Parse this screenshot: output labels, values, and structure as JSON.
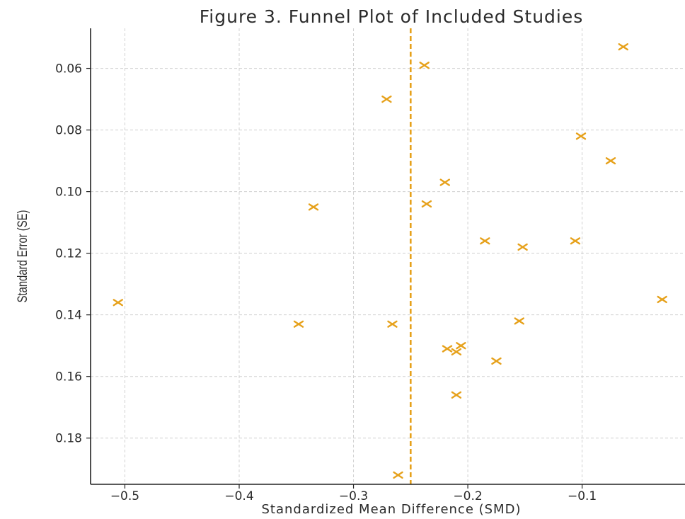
{
  "chart_data": {
    "type": "scatter",
    "title": "Figure 3. Funnel Plot of Included Studies",
    "xlabel": "Standardized Mean Difference (SMD)",
    "ylabel": "Standard Error (SE)",
    "xlim": [
      -0.53,
      -0.01
    ],
    "ylim": [
      0.195,
      0.047
    ],
    "y_inverted": true,
    "xticks": [
      -0.5,
      -0.4,
      -0.3,
      -0.2,
      -0.1
    ],
    "xtick_labels": [
      "−0.5",
      "−0.4",
      "−0.3",
      "−0.2",
      "−0.1"
    ],
    "yticks": [
      0.06,
      0.08,
      0.1,
      0.12,
      0.14,
      0.16,
      0.18
    ],
    "ytick_labels": [
      "0.06",
      "0.08",
      "0.10",
      "0.12",
      "0.14",
      "0.16",
      "0.18"
    ],
    "grid": true,
    "marker": "x",
    "color": "#e6a11b",
    "reference_line": {
      "x": -0.25,
      "style": "dashed",
      "color": "#e6a11b"
    },
    "points": [
      {
        "x": -0.064,
        "y": 0.053
      },
      {
        "x": -0.238,
        "y": 0.059
      },
      {
        "x": -0.271,
        "y": 0.07
      },
      {
        "x": -0.101,
        "y": 0.082
      },
      {
        "x": -0.075,
        "y": 0.09
      },
      {
        "x": -0.22,
        "y": 0.097
      },
      {
        "x": -0.335,
        "y": 0.105
      },
      {
        "x": -0.236,
        "y": 0.104
      },
      {
        "x": -0.185,
        "y": 0.116
      },
      {
        "x": -0.106,
        "y": 0.116
      },
      {
        "x": -0.152,
        "y": 0.118
      },
      {
        "x": -0.506,
        "y": 0.136
      },
      {
        "x": -0.03,
        "y": 0.135
      },
      {
        "x": -0.348,
        "y": 0.143
      },
      {
        "x": -0.266,
        "y": 0.143
      },
      {
        "x": -0.155,
        "y": 0.142
      },
      {
        "x": -0.218,
        "y": 0.151
      },
      {
        "x": -0.206,
        "y": 0.15
      },
      {
        "x": -0.21,
        "y": 0.152
      },
      {
        "x": -0.175,
        "y": 0.155
      },
      {
        "x": -0.21,
        "y": 0.166
      },
      {
        "x": -0.261,
        "y": 0.192
      }
    ]
  }
}
